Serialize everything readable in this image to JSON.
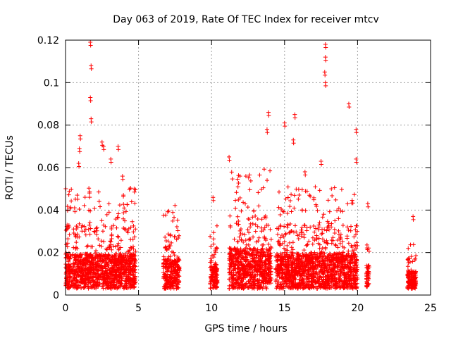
{
  "chart_data": {
    "type": "scatter",
    "title": "Day 063 of 2019, Rate Of TEC Index for receiver mtcv",
    "xlabel": "GPS time / hours",
    "ylabel": "ROTI / TECUs",
    "xlim": [
      0,
      25
    ],
    "ylim": [
      0,
      0.12
    ],
    "grid": true,
    "marker": "+",
    "marker_color": "#ff0000",
    "x_ticks": [
      0,
      5,
      10,
      15,
      20,
      25
    ],
    "x_tick_labels": [
      "0",
      "5",
      "10",
      "15",
      "20",
      "25"
    ],
    "y_ticks": [
      0,
      0.02,
      0.04,
      0.06,
      0.08,
      0.1,
      0.12
    ],
    "y_tick_labels": [
      "0",
      "0.02",
      "0.04",
      "0.06",
      "0.08",
      "0.1",
      "0.12"
    ],
    "coverage_segments": [
      {
        "x_start": 0.0,
        "x_end": 4.8,
        "typical_max": 0.03
      },
      {
        "x_start": 6.7,
        "x_end": 7.8,
        "typical_max": 0.025
      },
      {
        "x_start": 9.9,
        "x_end": 10.4,
        "typical_max": 0.02
      },
      {
        "x_start": 11.2,
        "x_end": 14.1,
        "typical_max": 0.035
      },
      {
        "x_start": 14.4,
        "x_end": 20.0,
        "typical_max": 0.03
      },
      {
        "x_start": 20.6,
        "x_end": 20.8,
        "typical_max": 0.02
      },
      {
        "x_start": 23.4,
        "x_end": 24.0,
        "typical_max": 0.015
      }
    ],
    "peak_points": [
      {
        "x": 1.7,
        "y": 0.119
      },
      {
        "x": 1.75,
        "y": 0.108
      },
      {
        "x": 1.7,
        "y": 0.093
      },
      {
        "x": 1.75,
        "y": 0.083
      },
      {
        "x": 1.0,
        "y": 0.075
      },
      {
        "x": 0.95,
        "y": 0.069
      },
      {
        "x": 0.9,
        "y": 0.062
      },
      {
        "x": 2.5,
        "y": 0.072
      },
      {
        "x": 2.6,
        "y": 0.07
      },
      {
        "x": 3.6,
        "y": 0.07
      },
      {
        "x": 3.1,
        "y": 0.064
      },
      {
        "x": 3.9,
        "y": 0.056
      },
      {
        "x": 4.7,
        "y": 0.05
      },
      {
        "x": 11.2,
        "y": 0.065
      },
      {
        "x": 10.1,
        "y": 0.046
      },
      {
        "x": 13.9,
        "y": 0.086
      },
      {
        "x": 13.8,
        "y": 0.078
      },
      {
        "x": 15.0,
        "y": 0.081
      },
      {
        "x": 15.7,
        "y": 0.085
      },
      {
        "x": 15.6,
        "y": 0.073
      },
      {
        "x": 16.4,
        "y": 0.058
      },
      {
        "x": 17.5,
        "y": 0.063
      },
      {
        "x": 17.8,
        "y": 0.118
      },
      {
        "x": 17.8,
        "y": 0.112
      },
      {
        "x": 17.75,
        "y": 0.105
      },
      {
        "x": 17.8,
        "y": 0.1
      },
      {
        "x": 19.4,
        "y": 0.09
      },
      {
        "x": 19.9,
        "y": 0.078
      },
      {
        "x": 19.9,
        "y": 0.064
      },
      {
        "x": 20.7,
        "y": 0.043
      },
      {
        "x": 23.8,
        "y": 0.037
      }
    ]
  }
}
